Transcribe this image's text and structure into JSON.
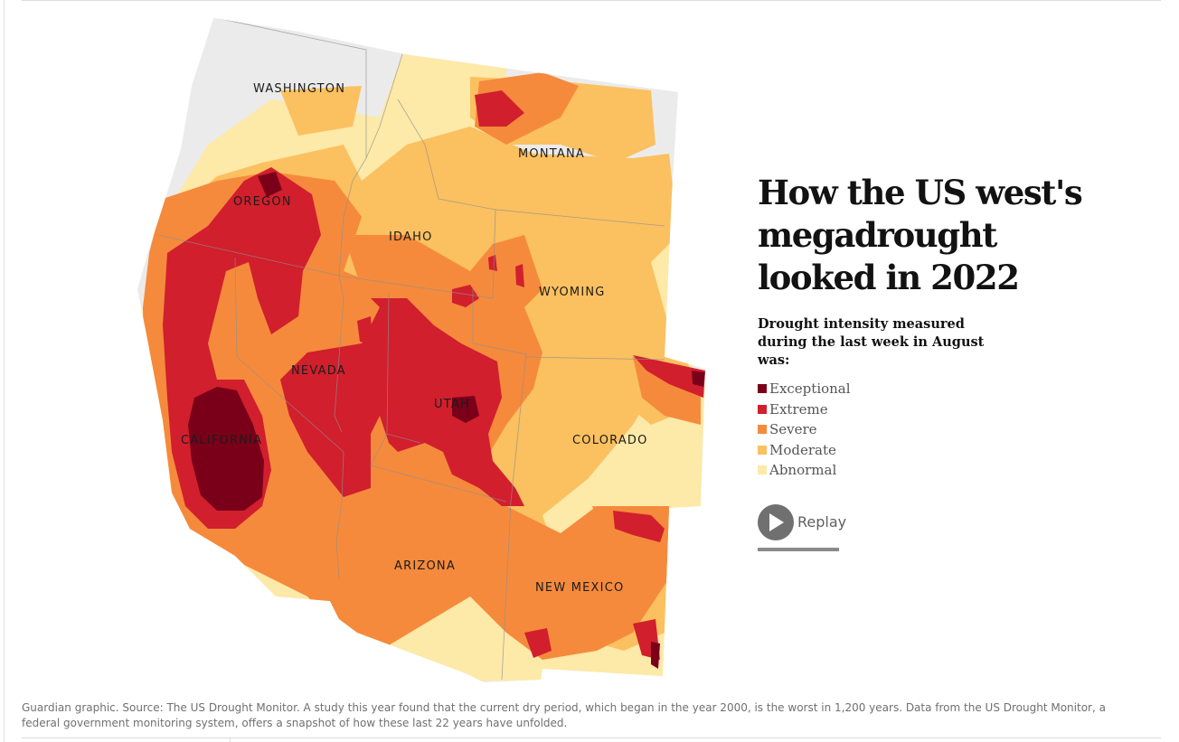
{
  "headline": "How the US west's megadrought looked in 2022",
  "subtitle": "Drought intensity measured during the last week in August was:",
  "legend": [
    {
      "label": "Exceptional",
      "color": "#7a0019"
    },
    {
      "label": "Extreme",
      "color": "#d11f2d"
    },
    {
      "label": "Severe",
      "color": "#f58a3c"
    },
    {
      "label": "Moderate",
      "color": "#fbc060"
    },
    {
      "label": "Abnormal",
      "color": "#fde9a8"
    }
  ],
  "replay": {
    "label": "Replay",
    "icon": "play-icon",
    "progress": 1.0
  },
  "states": {
    "washington": "WASHINGTON",
    "oregon": "OREGON",
    "california": "CALIFORNIA",
    "nevada": "NEVADA",
    "idaho": "IDAHO",
    "montana": "MONTANA",
    "wyoming": "WYOMING",
    "utah": "UTAH",
    "colorado": "COLORADO",
    "arizona": "ARIZONA",
    "new_mexico": "NEW MEXICO"
  },
  "caption": "Guardian graphic. Source: The US Drought Monitor. A study this year found that the current dry period, which began in the year 2000, is the worst in 1,200 years. Data from the US Drought Monitor, a federal government monitoring system, offers a snapshot of how these last 22 years have unfolded."
}
